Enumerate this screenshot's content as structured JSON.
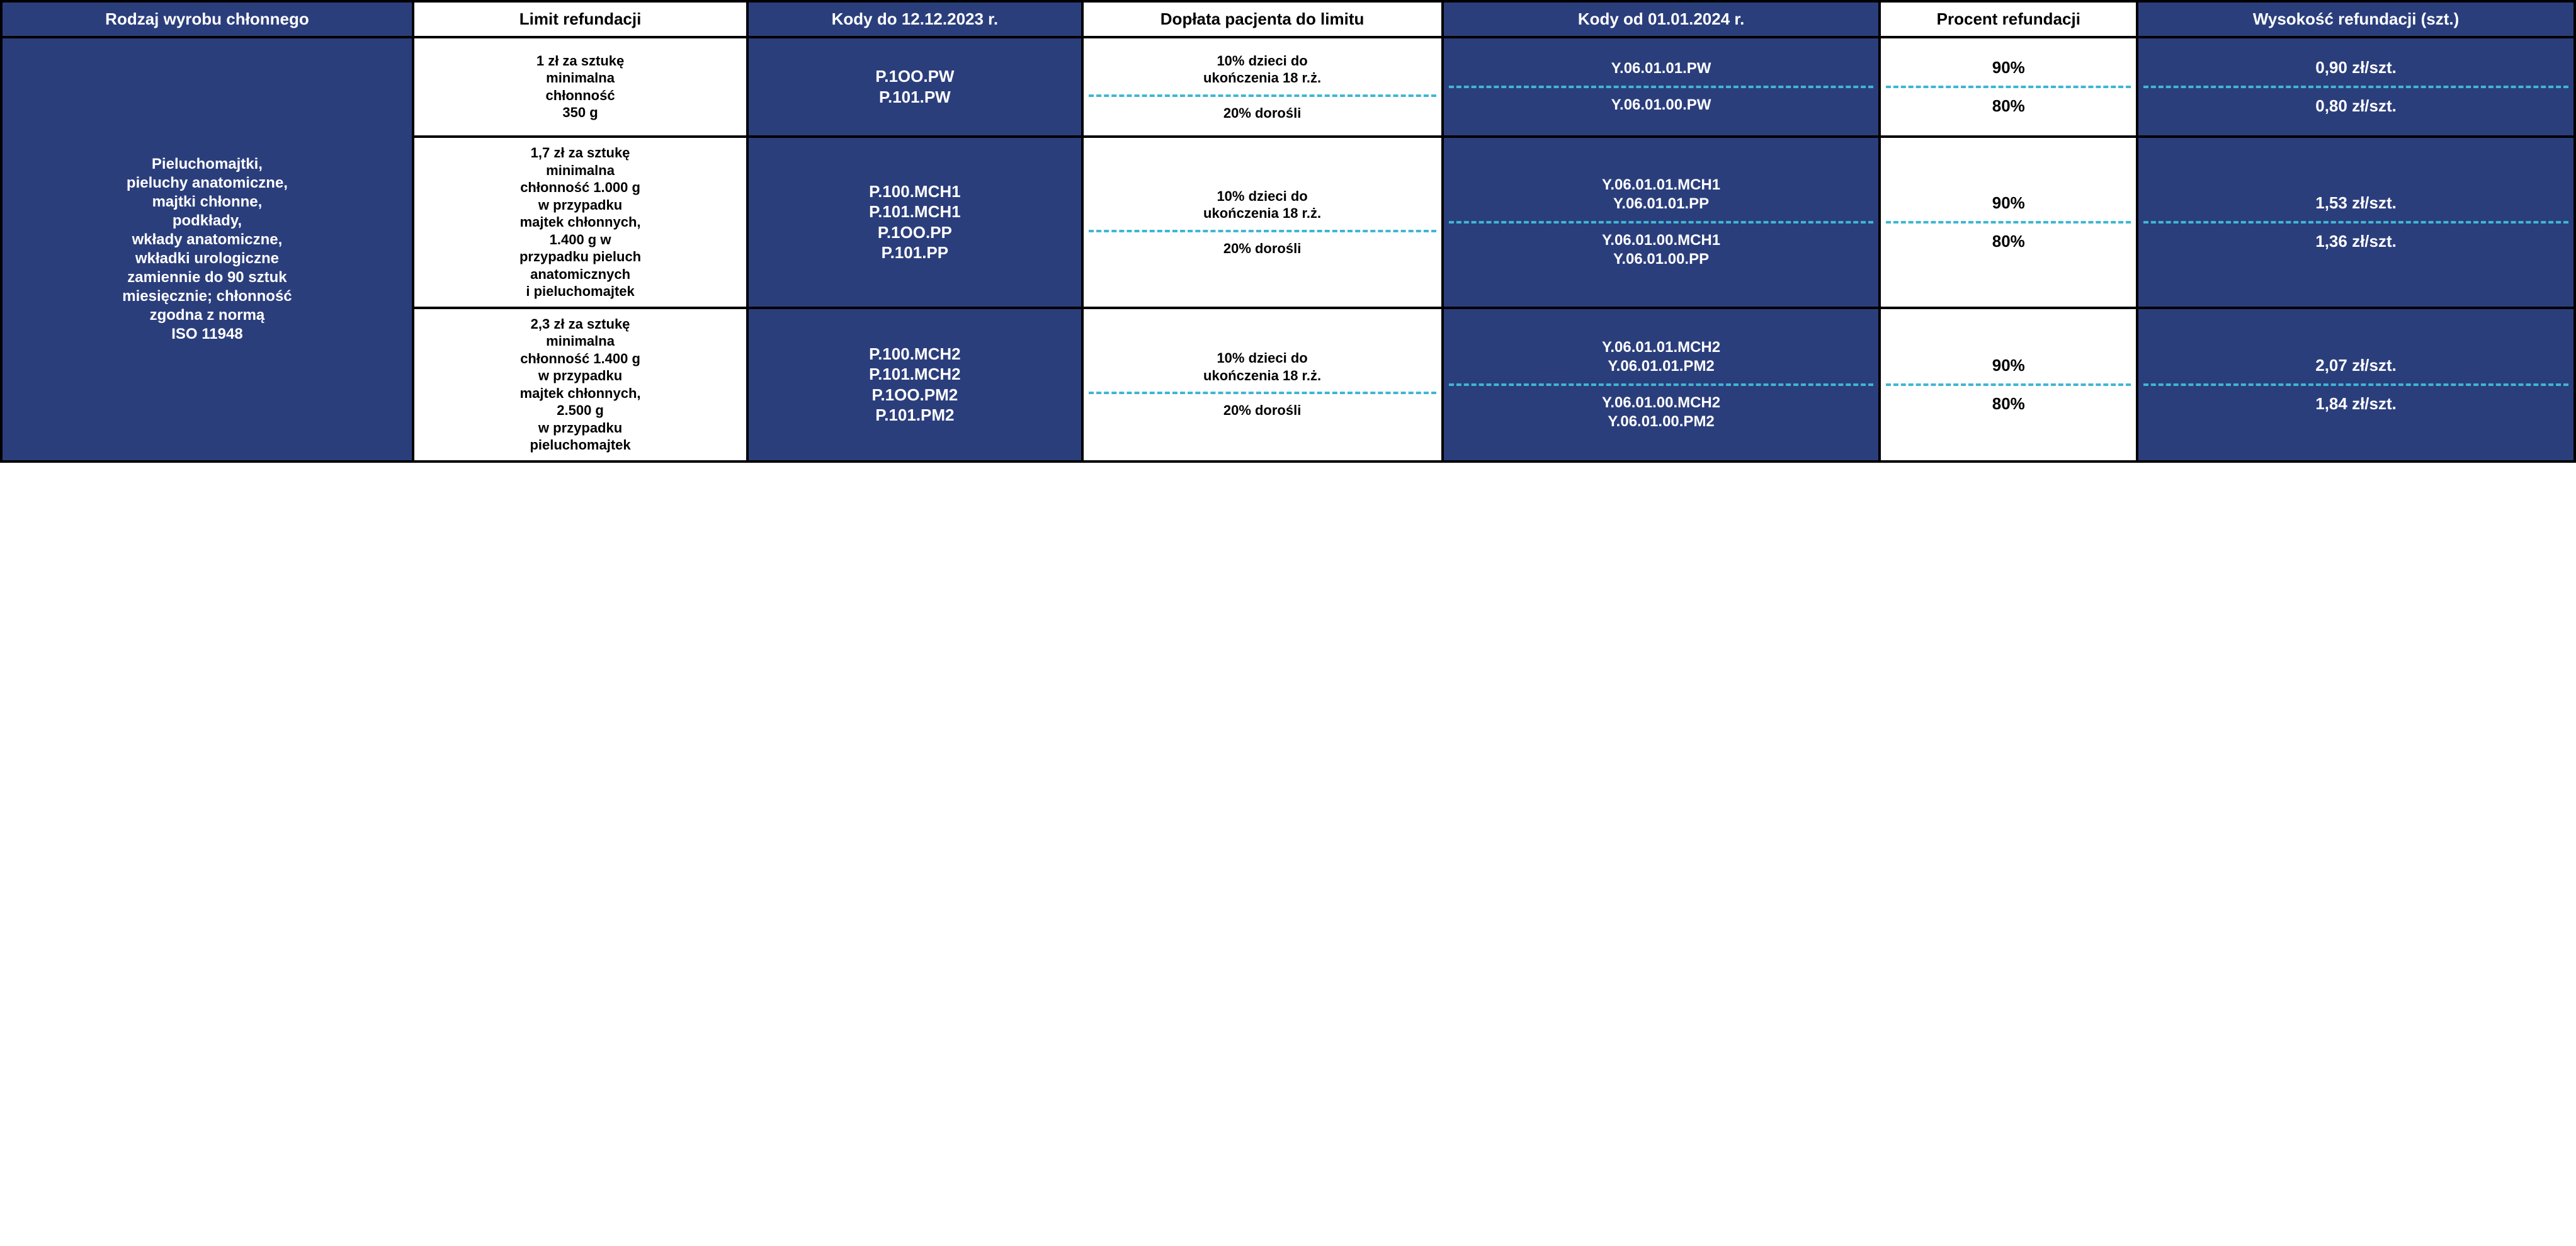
{
  "colors": {
    "blue_bg": "#2b3e7c",
    "white_bg": "#ffffff",
    "border": "#000000",
    "dash": "#3fb6d3"
  },
  "headers": {
    "col1": "Rodzaj wyrobu chłonnego",
    "col2": "Limit refundacji",
    "col3": "Kody do 12.12.2023 r.",
    "col4": "Dopłata pacjenta do limitu",
    "col5": "Kody od 01.01.2024 r.",
    "col6": "Procent refundacji",
    "col7": "Wysokość refundacji (szt.)"
  },
  "row_label": "Pieluchomajtki,\npieluchy anatomiczne,\nmajtki chłonne,\npodkłady,\nwkłady anatomiczne,\nwkładki urologiczne\nzamiennie do 90 sztuk\nmiesięcznie; chłonność\nzgodna z normą\nISO 11948",
  "groups": [
    {
      "limit": "1 zł za sztukę\nminimalna\nchłonność\n350 g",
      "old_codes": "P.1OO.PW\nP.101.PW",
      "top": {
        "doplata": "10% dzieci do\nukończenia 18 r.ż.",
        "new_code": "Y.06.01.01.PW",
        "pct": "90%",
        "amount": "0,90 zł/szt."
      },
      "bot": {
        "doplata": "20% dorośli",
        "new_code": "Y.06.01.00.PW",
        "pct": "80%",
        "amount": "0,80 zł/szt."
      }
    },
    {
      "limit": "1,7 zł za sztukę\nminimalna\nchłonność 1.000 g\nw przypadku\nmajtek chłonnych,\n1.400 g w\nprzypadku pieluch\nanatomicznych\ni pieluchomajtek",
      "old_codes": "P.100.MCH1\nP.101.MCH1\nP.1OO.PP\nP.101.PP",
      "top": {
        "doplata": "10% dzieci do\nukończenia 18 r.ż.",
        "new_code": "Y.06.01.01.MCH1\nY.06.01.01.PP",
        "pct": "90%",
        "amount": "1,53 zł/szt."
      },
      "bot": {
        "doplata": "20% dorośli",
        "new_code": "Y.06.01.00.MCH1\nY.06.01.00.PP",
        "pct": "80%",
        "amount": "1,36 zł/szt."
      }
    },
    {
      "limit": "2,3 zł za sztukę\nminimalna\nchłonność 1.400 g\nw przypadku\nmajtek chłonnych,\n2.500 g\nw przypadku\npieluchomajtek",
      "old_codes": "P.100.MCH2\nP.101.MCH2\nP.1OO.PM2\nP.101.PM2",
      "top": {
        "doplata": "10% dzieci do\nukończenia 18 r.ż.",
        "new_code": "Y.06.01.01.MCH2\nY.06.01.01.PM2",
        "pct": "90%",
        "amount": "2,07 zł/szt."
      },
      "bot": {
        "doplata": "20% dorośli",
        "new_code": "Y.06.01.00.MCH2\nY.06.01.00.PM2",
        "pct": "80%",
        "amount": "1,84 zł/szt."
      }
    }
  ]
}
